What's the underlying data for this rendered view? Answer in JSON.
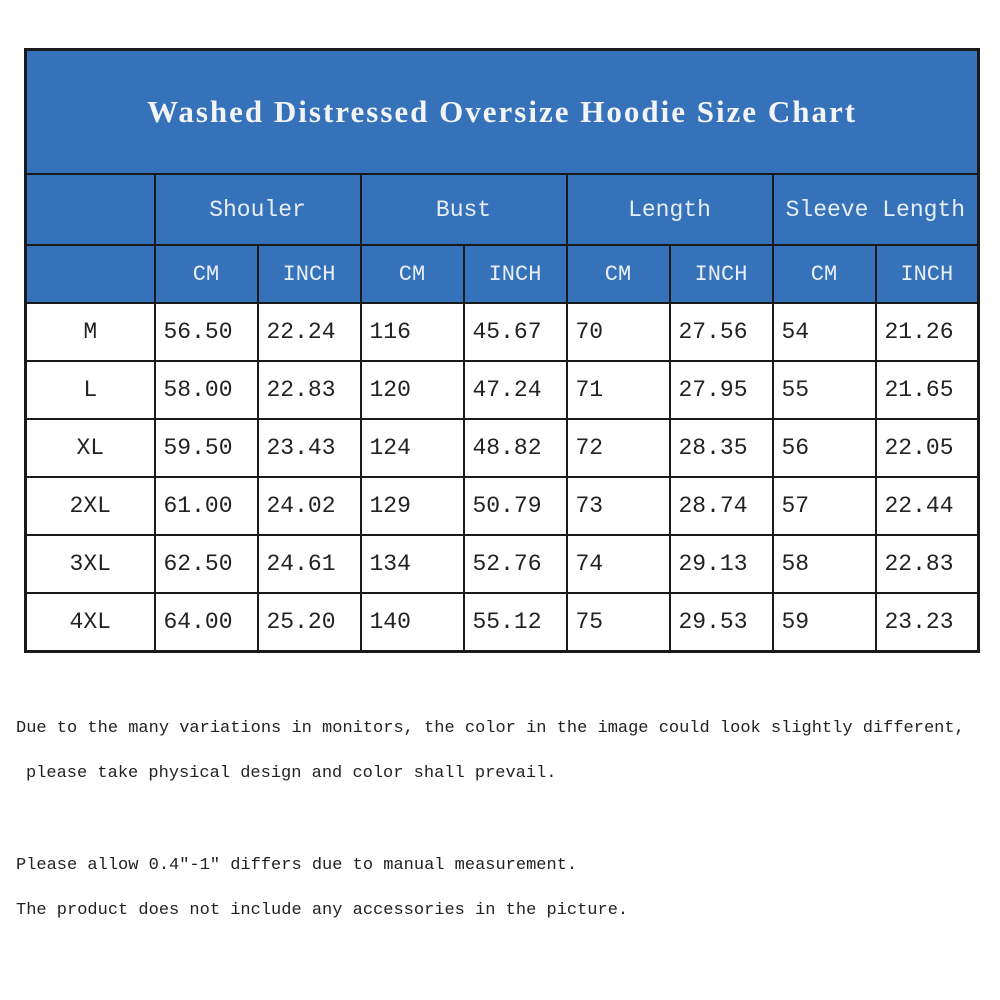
{
  "table": {
    "title": "Washed Distressed Oversize Hoodie Size Chart",
    "groups": [
      "Shouler",
      "Bust",
      "Length",
      "Sleeve Length"
    ],
    "units": [
      "CM",
      "INCH",
      "CM",
      "INCH",
      "CM",
      "INCH",
      "CM",
      "INCH"
    ],
    "rows": [
      [
        "M",
        "56.50",
        "22.24",
        "116",
        "45.67",
        "70",
        "27.56",
        "54",
        "21.26"
      ],
      [
        "L",
        "58.00",
        "22.83",
        "120",
        "47.24",
        "71",
        "27.95",
        "55",
        "21.65"
      ],
      [
        "XL",
        "59.50",
        "23.43",
        "124",
        "48.82",
        "72",
        "28.35",
        "56",
        "22.05"
      ],
      [
        "2XL",
        "61.00",
        "24.02",
        "129",
        "50.79",
        "73",
        "28.74",
        "57",
        "22.44"
      ],
      [
        "3XL",
        "62.50",
        "24.61",
        "134",
        "52.76",
        "74",
        "29.13",
        "58",
        "22.83"
      ],
      [
        "4XL",
        "64.00",
        "25.20",
        "140",
        "55.12",
        "75",
        "29.53",
        "59",
        "23.23"
      ]
    ]
  },
  "notes": [
    "Due to the many variations in monitors, the color in the image could look slightly different,",
    "please take physical design and color shall prevail.",
    "Please allow 0.4\"-1\" differs due to manual measurement.",
    "The product does not include any accessories in the picture."
  ]
}
